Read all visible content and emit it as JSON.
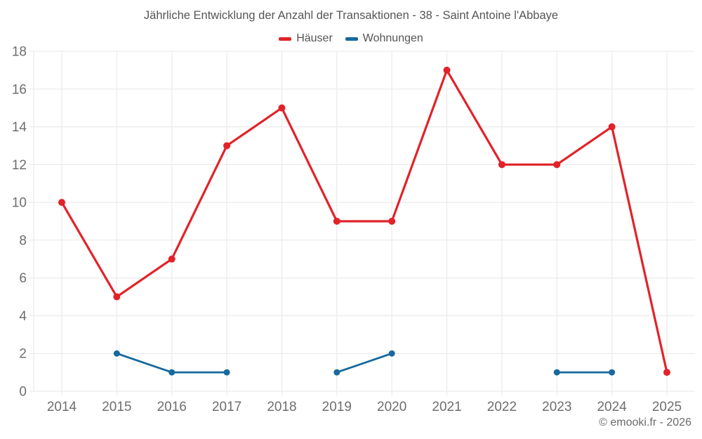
{
  "header": {
    "title": "Jährliche Entwicklung der Anzahl der Transaktionen - 38 - Saint Antoine l'Abbaye"
  },
  "footer": {
    "credit": "© emooki.fr - 2026"
  },
  "colors": {
    "hauser": "#e12329",
    "wohnungen": "#17699e",
    "grid": "#ececec",
    "tick_text": "#6e6e6e"
  },
  "chart_data": {
    "type": "line",
    "title": "Jährliche Entwicklung der Anzahl der Transaktionen - 38 - Saint Antoine l'Abbaye",
    "x": [
      2014,
      2015,
      2016,
      2017,
      2018,
      2019,
      2020,
      2021,
      2022,
      2023,
      2024,
      2025
    ],
    "series": [
      {
        "name": "Häuser",
        "color": "#e12329",
        "values": [
          10,
          5,
          7,
          13,
          15,
          9,
          9,
          17,
          12,
          12,
          14,
          1
        ]
      },
      {
        "name": "Wohnungen",
        "color": "#17699e",
        "values": [
          null,
          2,
          1,
          1,
          null,
          1,
          2,
          null,
          null,
          1,
          1,
          null
        ]
      }
    ],
    "xlabel": "",
    "ylabel": "",
    "ylim": [
      0,
      18
    ],
    "ytick_step": 2,
    "grid": true,
    "legend_position": "top"
  }
}
